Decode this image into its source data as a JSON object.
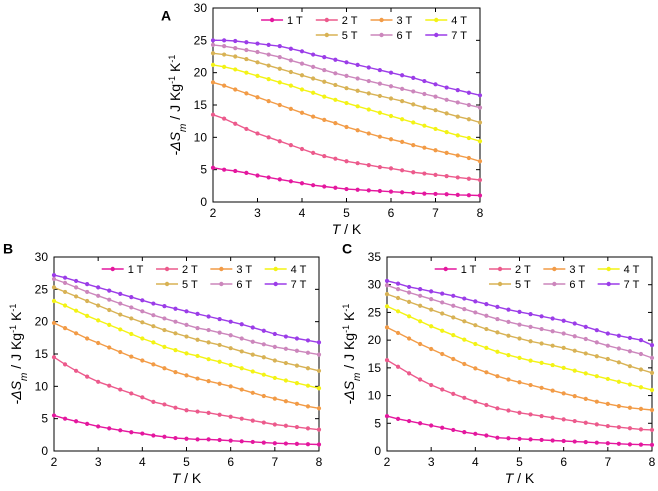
{
  "chart_data": [
    {
      "panel": "A",
      "type": "line",
      "xlabel": "T / K",
      "ylabel": "-ΔS_m / J Kg^-1 K^-1",
      "xlim": [
        2,
        8
      ],
      "ylim": [
        0,
        30
      ],
      "xticks": [
        2,
        3,
        4,
        5,
        6,
        7,
        8
      ],
      "yticks": [
        0,
        5,
        10,
        15,
        20,
        25,
        30
      ],
      "legend_position": "top-right",
      "x": [
        2.0,
        2.25,
        2.5,
        2.75,
        3.0,
        3.25,
        3.5,
        3.75,
        4.0,
        4.25,
        4.5,
        4.75,
        5.0,
        5.25,
        5.5,
        5.75,
        6.0,
        6.25,
        6.5,
        6.75,
        7.0,
        7.25,
        7.5,
        7.75,
        8.0
      ],
      "series": [
        {
          "name": "1 T",
          "color": "#e4179e",
          "values": [
            5.3,
            5.0,
            4.8,
            4.5,
            4.1,
            3.8,
            3.5,
            3.2,
            2.9,
            2.6,
            2.4,
            2.2,
            2.0,
            1.9,
            1.8,
            1.7,
            1.6,
            1.5,
            1.4,
            1.3,
            1.25,
            1.2,
            1.1,
            1.05,
            1.0
          ]
        },
        {
          "name": "2 T",
          "color": "#ec5a8c",
          "values": [
            13.5,
            12.9,
            12.1,
            11.3,
            10.6,
            10.0,
            9.4,
            8.8,
            8.2,
            7.6,
            7.1,
            6.7,
            6.3,
            6.0,
            5.7,
            5.4,
            5.2,
            4.9,
            4.6,
            4.4,
            4.2,
            4.0,
            3.8,
            3.6,
            3.4
          ]
        },
        {
          "name": "3 T",
          "color": "#f29b46",
          "values": [
            18.5,
            18.0,
            17.4,
            16.8,
            16.2,
            15.6,
            15.0,
            14.4,
            13.8,
            13.2,
            12.7,
            12.2,
            11.6,
            11.1,
            10.6,
            10.1,
            9.7,
            9.3,
            8.8,
            8.4,
            8.0,
            7.6,
            7.2,
            6.8,
            6.3
          ]
        },
        {
          "name": "4 T",
          "color": "#f3f314",
          "values": [
            21.2,
            20.9,
            20.5,
            20.0,
            19.5,
            19.0,
            18.5,
            18.0,
            17.4,
            16.9,
            16.3,
            15.8,
            15.3,
            14.8,
            14.3,
            13.8,
            13.3,
            12.8,
            12.3,
            11.8,
            11.3,
            10.8,
            10.3,
            9.9,
            9.4
          ]
        },
        {
          "name": "5 T",
          "color": "#d8b254",
          "values": [
            23.0,
            22.8,
            22.5,
            22.1,
            21.6,
            21.1,
            20.6,
            20.1,
            19.6,
            19.1,
            18.6,
            18.1,
            17.6,
            17.2,
            16.8,
            16.4,
            16.0,
            15.6,
            15.1,
            14.6,
            14.2,
            13.7,
            13.2,
            12.8,
            12.3
          ]
        },
        {
          "name": "6 T",
          "color": "#cc86bc",
          "values": [
            24.3,
            24.1,
            23.8,
            23.5,
            23.2,
            22.8,
            22.4,
            21.9,
            21.4,
            20.9,
            20.4,
            19.9,
            19.5,
            19.1,
            18.7,
            18.3,
            17.9,
            17.5,
            17.1,
            16.7,
            16.3,
            15.8,
            15.4,
            15.0,
            14.6
          ]
        },
        {
          "name": "7 T",
          "color": "#9b3ce8",
          "values": [
            25.0,
            25.0,
            24.9,
            24.7,
            24.5,
            24.3,
            24.1,
            23.7,
            23.3,
            22.8,
            22.4,
            22.0,
            21.6,
            21.2,
            20.8,
            20.4,
            20.0,
            19.6,
            19.2,
            18.7,
            18.2,
            17.7,
            17.3,
            16.9,
            16.5
          ]
        }
      ]
    },
    {
      "panel": "B",
      "type": "line",
      "xlabel": "T / K",
      "ylabel": "-ΔS_m / J Kg^-1 K^-1",
      "xlim": [
        2,
        8
      ],
      "ylim": [
        0,
        30
      ],
      "xticks": [
        2,
        3,
        4,
        5,
        6,
        7,
        8
      ],
      "yticks": [
        0,
        5,
        10,
        15,
        20,
        25,
        30
      ],
      "legend_position": "top-right",
      "x": [
        2.0,
        2.25,
        2.5,
        2.75,
        3.0,
        3.25,
        3.5,
        3.75,
        4.0,
        4.25,
        4.5,
        4.75,
        5.0,
        5.25,
        5.5,
        5.75,
        6.0,
        6.25,
        6.5,
        6.75,
        7.0,
        7.25,
        7.5,
        7.75,
        8.0
      ],
      "series": [
        {
          "name": "1 T",
          "color": "#e4179e",
          "values": [
            5.5,
            5.0,
            4.6,
            4.2,
            3.8,
            3.5,
            3.2,
            2.9,
            2.7,
            2.4,
            2.2,
            2.0,
            1.9,
            1.8,
            1.8,
            1.7,
            1.6,
            1.5,
            1.4,
            1.3,
            1.2,
            1.15,
            1.1,
            1.05,
            1.0
          ]
        },
        {
          "name": "2 T",
          "color": "#ec5a8c",
          "values": [
            14.5,
            13.4,
            12.4,
            11.5,
            10.7,
            10.1,
            9.5,
            8.9,
            8.3,
            7.6,
            7.2,
            6.7,
            6.3,
            6.1,
            5.9,
            5.6,
            5.3,
            5.0,
            4.7,
            4.4,
            4.1,
            3.9,
            3.7,
            3.5,
            3.3
          ]
        },
        {
          "name": "3 T",
          "color": "#f29b46",
          "values": [
            19.8,
            19.0,
            18.2,
            17.4,
            16.7,
            16.0,
            15.3,
            14.6,
            14.0,
            13.4,
            12.8,
            12.2,
            11.7,
            11.2,
            10.8,
            10.4,
            10.0,
            9.5,
            9.0,
            8.5,
            8.1,
            7.7,
            7.3,
            6.9,
            6.6
          ]
        },
        {
          "name": "4 T",
          "color": "#f3f314",
          "values": [
            23.2,
            22.5,
            21.7,
            20.9,
            20.2,
            19.5,
            18.8,
            18.1,
            17.4,
            16.8,
            16.1,
            15.6,
            15.1,
            14.7,
            14.2,
            13.8,
            13.3,
            12.8,
            12.3,
            11.8,
            11.3,
            10.9,
            10.5,
            10.1,
            9.7
          ]
        },
        {
          "name": "5 T",
          "color": "#d8b254",
          "values": [
            25.3,
            24.6,
            23.9,
            23.2,
            22.5,
            21.8,
            21.1,
            20.5,
            19.9,
            19.3,
            18.7,
            18.2,
            17.7,
            17.2,
            16.8,
            16.4,
            15.9,
            15.4,
            14.9,
            14.5,
            14.0,
            13.6,
            13.2,
            12.8,
            12.4
          ]
        },
        {
          "name": "6 T",
          "color": "#cc86bc",
          "values": [
            26.6,
            26.0,
            25.3,
            24.6,
            24.0,
            23.4,
            22.8,
            22.2,
            21.6,
            21.0,
            20.5,
            20.0,
            19.5,
            19.0,
            18.7,
            18.3,
            17.9,
            17.4,
            16.9,
            16.5,
            16.1,
            15.8,
            15.5,
            15.2,
            14.9
          ]
        },
        {
          "name": "7 T",
          "color": "#9b3ce8",
          "values": [
            27.2,
            26.8,
            26.3,
            25.8,
            25.3,
            24.8,
            24.3,
            23.8,
            23.3,
            22.8,
            22.4,
            22.0,
            21.6,
            21.2,
            20.8,
            20.4,
            20.0,
            19.6,
            19.1,
            18.6,
            18.1,
            17.7,
            17.4,
            17.1,
            16.8
          ]
        }
      ]
    },
    {
      "panel": "C",
      "type": "line",
      "xlabel": "T / K",
      "ylabel": "-ΔS_m / J Kg^-1 K^-1",
      "xlim": [
        2,
        8
      ],
      "ylim": [
        0,
        35
      ],
      "xticks": [
        2,
        3,
        4,
        5,
        6,
        7,
        8
      ],
      "yticks": [
        0,
        5,
        10,
        15,
        20,
        25,
        30,
        35
      ],
      "legend_position": "top-right",
      "x": [
        2.0,
        2.25,
        2.5,
        2.75,
        3.0,
        3.25,
        3.5,
        3.75,
        4.0,
        4.25,
        4.5,
        4.75,
        5.0,
        5.25,
        5.5,
        5.75,
        6.0,
        6.25,
        6.5,
        6.75,
        7.0,
        7.25,
        7.5,
        7.75,
        8.0
      ],
      "series": [
        {
          "name": "1 T",
          "color": "#e4179e",
          "values": [
            6.3,
            5.8,
            5.4,
            5.0,
            4.6,
            4.2,
            3.8,
            3.4,
            3.1,
            2.8,
            2.4,
            2.3,
            2.2,
            2.1,
            2.0,
            1.9,
            1.8,
            1.7,
            1.6,
            1.5,
            1.4,
            1.3,
            1.2,
            1.15,
            1.1
          ]
        },
        {
          "name": "2 T",
          "color": "#ec5a8c",
          "values": [
            16.4,
            15.2,
            14.0,
            12.9,
            11.9,
            11.1,
            10.3,
            9.6,
            8.9,
            8.3,
            7.7,
            7.3,
            6.9,
            6.6,
            6.3,
            6.0,
            5.7,
            5.4,
            5.1,
            4.8,
            4.5,
            4.3,
            4.1,
            3.9,
            3.8
          ]
        },
        {
          "name": "3 T",
          "color": "#f29b46",
          "values": [
            22.3,
            21.3,
            20.3,
            19.3,
            18.4,
            17.5,
            16.6,
            15.7,
            14.9,
            14.2,
            13.5,
            12.9,
            12.4,
            11.9,
            11.4,
            10.9,
            10.4,
            9.9,
            9.4,
            8.9,
            8.5,
            8.1,
            7.8,
            7.6,
            7.4
          ]
        },
        {
          "name": "4 T",
          "color": "#f3f314",
          "values": [
            26.1,
            25.2,
            24.3,
            23.4,
            22.5,
            21.7,
            20.9,
            20.1,
            19.3,
            18.6,
            17.9,
            17.3,
            16.8,
            16.3,
            15.9,
            15.5,
            15.0,
            14.5,
            14.0,
            13.5,
            13.0,
            12.5,
            12.0,
            11.5,
            11.0
          ]
        },
        {
          "name": "5 T",
          "color": "#d8b254",
          "values": [
            28.3,
            27.6,
            26.9,
            26.2,
            25.5,
            24.8,
            24.1,
            23.4,
            22.7,
            22.0,
            21.4,
            20.8,
            20.3,
            19.8,
            19.4,
            19.0,
            18.6,
            18.1,
            17.6,
            17.1,
            16.6,
            16.0,
            15.3,
            14.7,
            14.1
          ]
        },
        {
          "name": "6 T",
          "color": "#cc86bc",
          "values": [
            29.9,
            29.2,
            28.6,
            28.0,
            27.4,
            26.8,
            26.2,
            25.6,
            25.0,
            24.4,
            23.8,
            23.3,
            22.8,
            22.4,
            22.0,
            21.6,
            21.2,
            20.7,
            20.2,
            19.6,
            19.0,
            18.5,
            18.0,
            17.5,
            16.8
          ]
        },
        {
          "name": "7 T",
          "color": "#9b3ce8",
          "values": [
            30.7,
            30.2,
            29.6,
            29.2,
            28.8,
            28.4,
            28.0,
            27.5,
            27.0,
            26.5,
            26.0,
            25.5,
            25.1,
            24.7,
            24.3,
            23.9,
            23.5,
            23.0,
            22.4,
            21.8,
            21.2,
            20.8,
            20.4,
            20.0,
            19.1
          ]
        }
      ]
    }
  ]
}
